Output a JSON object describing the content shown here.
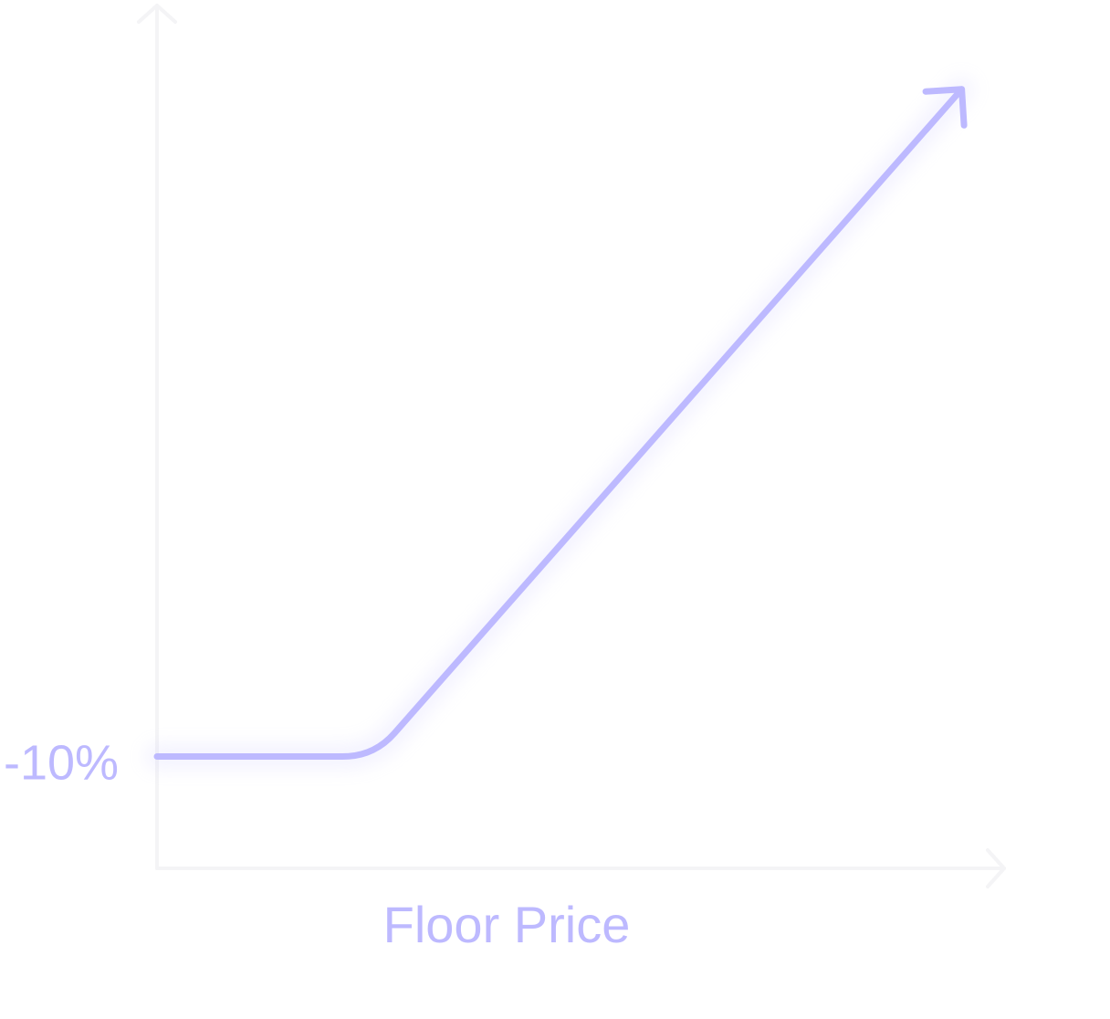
{
  "colors": {
    "series": "#bdb9ff",
    "label": "#bdb9ff",
    "axis": "#f4f4f6"
  },
  "chart_data": {
    "type": "line",
    "title": "",
    "xlabel": "Floor Price",
    "ylabel": "",
    "y_tick_labels": [
      "-10%"
    ],
    "grid": false,
    "legend": "none",
    "xlim": [
      0,
      10
    ],
    "ylim": [
      -13,
      10
    ],
    "series": [
      {
        "x": [
          0,
          2.56,
          9.5
        ],
        "y": [
          -10,
          -10,
          7.9
        ]
      }
    ]
  }
}
